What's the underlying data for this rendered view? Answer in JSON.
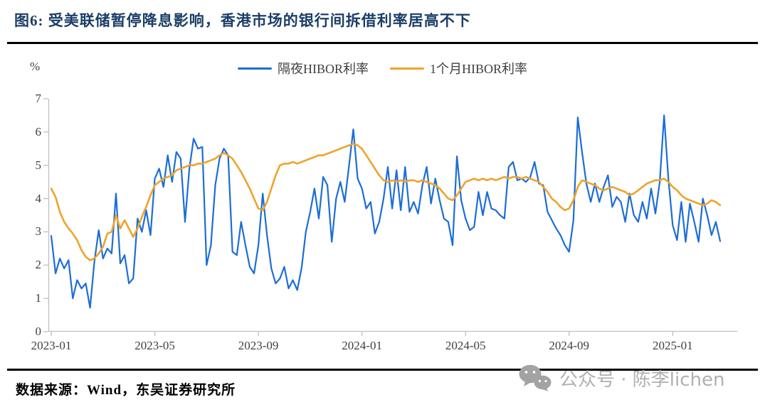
{
  "title": "图6:  受美联储暂停降息影响，香港市场的银行间拆借利率居高不下",
  "legend": [
    {
      "label": "隔夜HIBOR利率",
      "color": "#1C6DD8"
    },
    {
      "label": "1个月HIBOR利率",
      "color": "#EFA32B"
    }
  ],
  "y_axis": {
    "unit": "%",
    "ticks": [
      7,
      6,
      5,
      4,
      3,
      2,
      1,
      0
    ]
  },
  "x_axis": {
    "tick_labels": [
      "2023-01",
      "2023-05",
      "2023-09",
      "2024-01",
      "2024-05",
      "2024-09",
      "2025-01"
    ],
    "tick_months": [
      0,
      4,
      8,
      12,
      16,
      20,
      24
    ]
  },
  "source": "数据来源：Wind，东吴证券研究所",
  "watermark": {
    "icon": "wechat-icon",
    "text": "公众号 · 陈李lichen"
  },
  "colors": {
    "axis": "#BFBFBF",
    "tick_text": "#3F3F3F",
    "title": "#1C3E67"
  },
  "chart_data": {
    "type": "line",
    "title": "受美联储暂停降息影响，香港市场的银行间拆借利率居高不下",
    "ylabel": "%",
    "ylim": [
      0,
      7
    ],
    "grid": false,
    "legend_position": "top-center",
    "x_start": "2023-01",
    "x_end": "2025-02",
    "points_per_month": 6,
    "x_tick_labels": [
      "2023-01",
      "2023-05",
      "2023-09",
      "2024-01",
      "2024-05",
      "2024-09",
      "2025-01"
    ],
    "series": [
      {
        "name": "隔夜HIBOR利率",
        "color": "#1C6DD8",
        "values": [
          2.88,
          1.75,
          2.2,
          1.9,
          2.15,
          1.0,
          1.55,
          1.3,
          1.45,
          0.72,
          2.1,
          3.05,
          2.2,
          2.5,
          2.35,
          4.15,
          2.05,
          2.3,
          1.45,
          1.6,
          3.4,
          3.0,
          3.65,
          2.9,
          4.6,
          4.9,
          4.35,
          5.3,
          4.5,
          5.4,
          5.2,
          3.3,
          4.9,
          5.8,
          5.5,
          5.55,
          2.0,
          2.6,
          4.4,
          5.2,
          5.5,
          5.3,
          2.4,
          2.3,
          3.3,
          2.6,
          1.95,
          1.75,
          2.6,
          4.15,
          2.9,
          1.9,
          1.45,
          1.6,
          1.95,
          1.3,
          1.55,
          1.25,
          1.9,
          3.0,
          3.6,
          4.3,
          3.4,
          4.65,
          4.4,
          2.7,
          4.0,
          4.5,
          3.9,
          5.0,
          6.08,
          4.6,
          4.3,
          3.7,
          3.9,
          2.95,
          3.3,
          4.0,
          4.95,
          3.7,
          4.85,
          3.65,
          4.95,
          3.6,
          3.9,
          3.55,
          4.4,
          4.95,
          3.85,
          4.6,
          3.95,
          3.4,
          3.3,
          2.6,
          5.27,
          3.95,
          3.4,
          3.05,
          3.15,
          4.2,
          3.5,
          4.2,
          3.7,
          3.65,
          3.5,
          3.4,
          4.95,
          5.1,
          4.55,
          4.6,
          4.5,
          4.65,
          5.1,
          4.45,
          4.4,
          3.6,
          3.35,
          3.1,
          2.9,
          2.6,
          2.4,
          3.35,
          6.44,
          5.4,
          4.45,
          3.9,
          4.45,
          3.9,
          4.35,
          4.7,
          3.75,
          4.05,
          3.9,
          3.3,
          4.15,
          3.5,
          3.3,
          3.9,
          3.4,
          4.3,
          3.55,
          4.5,
          6.5,
          4.6,
          3.2,
          2.75,
          3.9,
          2.7,
          3.85,
          3.3,
          2.7,
          4.0,
          3.5,
          2.9,
          3.3,
          2.72
        ]
      },
      {
        "name": "1个月HIBOR利率",
        "color": "#EFA32B",
        "values": [
          4.3,
          4.05,
          3.6,
          3.3,
          3.1,
          2.95,
          2.75,
          2.45,
          2.25,
          2.15,
          2.2,
          2.35,
          2.55,
          2.95,
          3.0,
          3.5,
          3.1,
          3.35,
          3.1,
          2.85,
          3.1,
          3.45,
          3.75,
          4.1,
          4.4,
          4.5,
          4.6,
          4.65,
          4.7,
          4.85,
          4.9,
          4.95,
          5.0,
          5.0,
          5.05,
          5.05,
          5.1,
          5.15,
          5.2,
          5.3,
          5.37,
          5.3,
          5.2,
          5.0,
          4.8,
          4.55,
          4.3,
          4.0,
          3.7,
          3.65,
          3.9,
          4.3,
          4.7,
          5.0,
          5.05,
          5.05,
          5.1,
          5.05,
          5.1,
          5.15,
          5.2,
          5.25,
          5.3,
          5.3,
          5.35,
          5.4,
          5.45,
          5.5,
          5.55,
          5.6,
          5.65,
          5.6,
          5.5,
          5.3,
          5.1,
          4.9,
          4.7,
          4.55,
          4.5,
          4.55,
          4.5,
          4.55,
          4.5,
          4.55,
          4.55,
          4.5,
          4.55,
          4.5,
          4.45,
          4.4,
          4.3,
          4.15,
          4.0,
          3.95,
          4.1,
          4.3,
          4.5,
          4.55,
          4.6,
          4.55,
          4.6,
          4.55,
          4.6,
          4.55,
          4.6,
          4.65,
          4.6,
          4.65,
          4.65,
          4.6,
          4.65,
          4.6,
          4.55,
          4.5,
          4.35,
          4.2,
          4.0,
          3.9,
          3.75,
          3.65,
          3.7,
          3.95,
          4.35,
          4.55,
          4.5,
          4.45,
          4.4,
          4.3,
          4.25,
          4.3,
          4.35,
          4.3,
          4.25,
          4.2,
          4.1,
          4.15,
          4.25,
          4.35,
          4.45,
          4.5,
          4.55,
          4.55,
          4.6,
          4.5,
          4.35,
          4.25,
          4.1,
          4.0,
          3.95,
          3.9,
          3.85,
          3.8,
          3.85,
          3.95,
          3.9,
          3.8
        ]
      }
    ]
  }
}
